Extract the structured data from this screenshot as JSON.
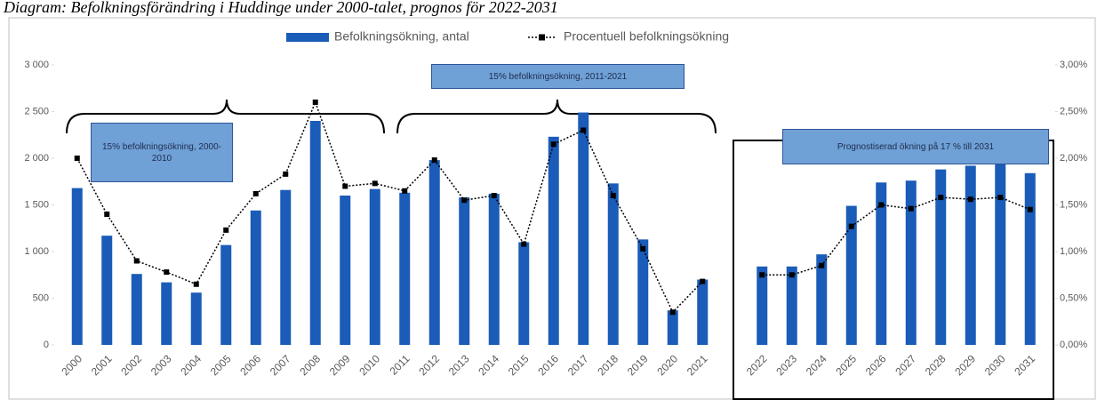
{
  "chart_data": {
    "type": "bar",
    "title": "Diagram: Befolkningsförändring i Huddinge under 2000-talet, prognos för 2022-2031",
    "annotations": [
      "15% befolkningsökning, 2000-2010",
      "15% befolkningsökning, 2011-2021",
      "Prognostiserad ökning på 17 % till 2031"
    ],
    "categories": [
      "2000",
      "2001",
      "2002",
      "2003",
      "2004",
      "2005",
      "2006",
      "2007",
      "2008",
      "2009",
      "2010",
      "2011",
      "2012",
      "2013",
      "2014",
      "2015",
      "2016",
      "2017",
      "2018",
      "2019",
      "2020",
      "2021",
      null,
      "2022",
      "2023",
      "2024",
      "2025",
      "2026",
      "2027",
      "2028",
      "2029",
      "2030",
      "2031"
    ],
    "series": [
      {
        "name": "Befolkningsökning, antal",
        "color": "#1a5cb8",
        "type": "bar",
        "values": [
          1680,
          1170,
          760,
          670,
          560,
          1070,
          1440,
          1660,
          2400,
          1600,
          1670,
          1630,
          1980,
          1580,
          1620,
          1100,
          2230,
          2490,
          1730,
          1130,
          370,
          700,
          null,
          840,
          840,
          970,
          1490,
          1740,
          1760,
          1880,
          1920,
          1940,
          1840
        ]
      },
      {
        "name": "Procentuell befolkningsökning",
        "color": "#000000",
        "type": "line",
        "axis": "y2",
        "values": [
          2.0,
          1.4,
          0.9,
          0.78,
          0.65,
          1.23,
          1.62,
          1.83,
          2.6,
          1.7,
          1.73,
          1.65,
          1.98,
          1.55,
          1.6,
          1.08,
          2.15,
          2.3,
          1.6,
          1.03,
          0.35,
          0.68,
          null,
          0.75,
          0.75,
          0.85,
          1.27,
          1.5,
          1.46,
          1.58,
          1.56,
          1.58,
          1.45
        ]
      }
    ],
    "ylim": [
      0,
      3000
    ],
    "yticks": [
      0,
      500,
      {
        "value": 1000,
        "label": "1 000"
      },
      {
        "value": 1500,
        "label": "1 500"
      },
      {
        "value": 2000,
        "label": "2 000"
      },
      {
        "value": 2500,
        "label": "2 500"
      },
      {
        "value": 3000,
        "label": "3 000"
      }
    ],
    "y2lim": [
      0,
      3
    ],
    "y2ticks": [
      {
        "value": 0,
        "label": "0,00%"
      },
      {
        "value": 0.5,
        "label": "0,50%"
      },
      {
        "value": 1,
        "label": "1,00%"
      },
      {
        "value": 1.5,
        "label": "1,50%"
      },
      {
        "value": 2,
        "label": "2,00%"
      },
      {
        "value": 2.5,
        "label": "2,50%"
      },
      {
        "value": 3,
        "label": "3,00%"
      }
    ],
    "grid": false
  }
}
